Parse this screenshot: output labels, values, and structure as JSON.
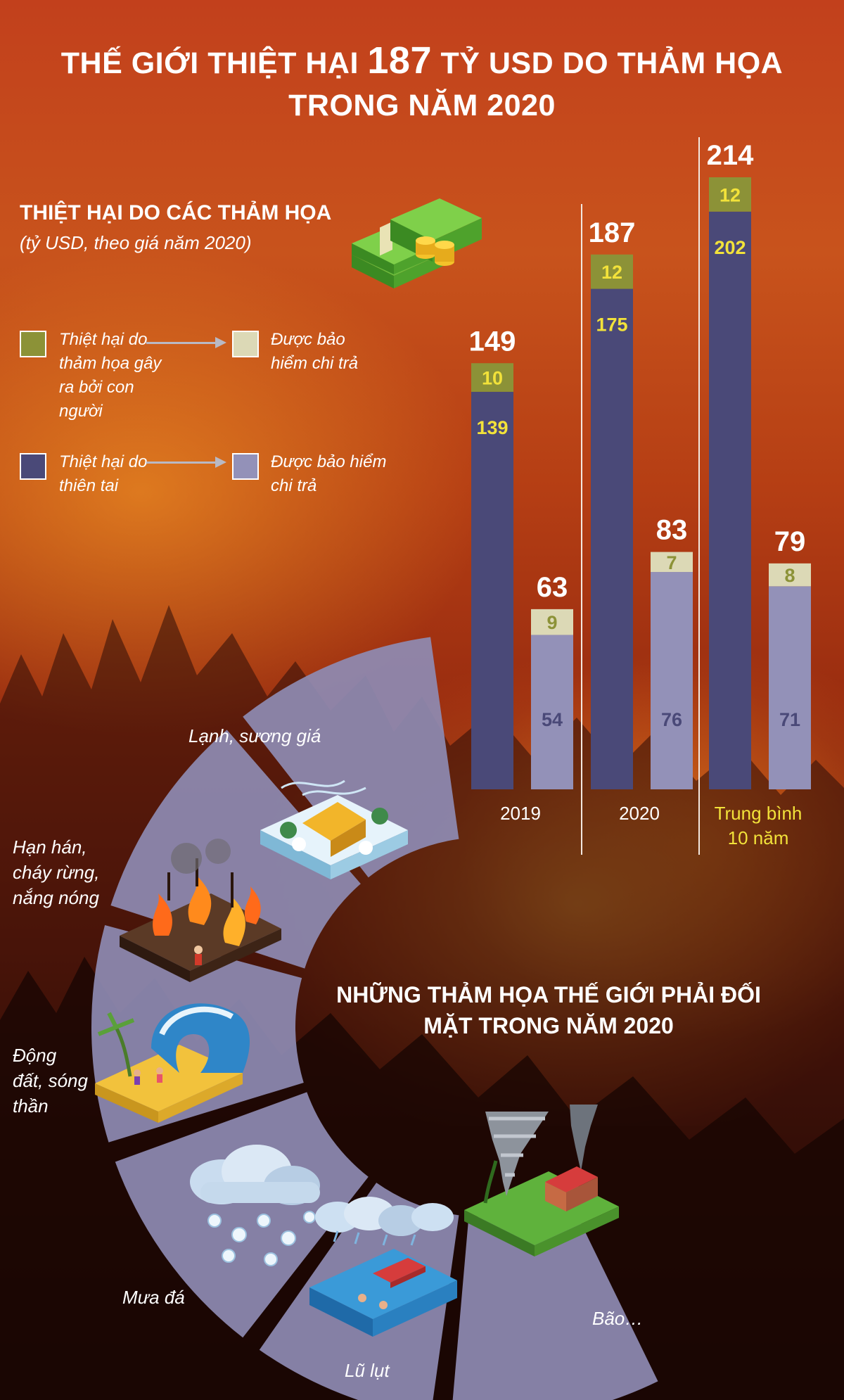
{
  "title": {
    "line1_pre": "THẾ GIỚI THIỆT HẠI",
    "line1_num": "187",
    "line1_post": "TỶ USD DO THẢM HỌA",
    "line2": "TRONG NĂM 2020"
  },
  "chart_data": {
    "type": "bar",
    "title": "THIỆT HẠI DO CÁC THẢM HỌA",
    "subtitle": "(tỷ USD, theo giá năm 2020)",
    "categories": [
      "2019",
      "2020",
      "Trung bình 10 năm"
    ],
    "series": [
      {
        "name": "Thiệt hại do thiên tai",
        "values": [
          139,
          175,
          202
        ]
      },
      {
        "name": "Thiệt hại do thảm họa gây ra bởi con người",
        "values": [
          10,
          12,
          12
        ]
      },
      {
        "name": "Được bảo hiểm chi trả (thiên tai)",
        "values": [
          54,
          76,
          71
        ]
      },
      {
        "name": "Được bảo hiểm chi trả (con người)",
        "values": [
          9,
          7,
          8
        ]
      }
    ],
    "totals_damage": [
      149,
      187,
      214
    ],
    "totals_insured": [
      63,
      83,
      79
    ],
    "groups": [
      {
        "label": "2019",
        "damage": {
          "total": 149,
          "natural": 139,
          "manmade": 10
        },
        "insured": {
          "total": 63,
          "natural": 54,
          "manmade": 9
        }
      },
      {
        "label": "2020",
        "damage": {
          "total": 187,
          "natural": 175,
          "manmade": 12
        },
        "insured": {
          "total": 83,
          "natural": 76,
          "manmade": 7
        }
      },
      {
        "label": "Trung bình 10 năm",
        "damage": {
          "total": 214,
          "natural": 202,
          "manmade": 12
        },
        "insured": {
          "total": 79,
          "natural": 71,
          "manmade": 8
        }
      }
    ],
    "ylim": [
      0,
      214
    ],
    "grid": false,
    "legend_position": "left",
    "colors": {
      "natural_damage": "#4a4978",
      "manmade_damage": "#8c9237",
      "natural_insured": "#9391b8",
      "manmade_insured": "#dcd9b6",
      "label_yellow": "#f2e23a",
      "label_insured_natural": "#4a4978",
      "label_insured_manmade": "#8c9237"
    }
  },
  "legend": {
    "manmade_damage": "Thiệt hại do thảm họa gây ra bởi con người",
    "manmade_insured": "Được bảo hiểm chi trả",
    "natural_damage": "Thiệt hại do thiên tai",
    "natural_insured": "Được bảo hiểm chi trả"
  },
  "disasters": {
    "title": "NHỮNG THẢM HỌA THẾ GIỚI PHẢI ĐỐI MẶT TRONG NĂM 2020",
    "items": [
      {
        "label": "Lạnh, sương giá",
        "icon": "snow-house-icon"
      },
      {
        "label": "Hạn hán, cháy rừng, nắng nóng",
        "icon": "wildfire-icon"
      },
      {
        "label": "Động đất, sóng thần",
        "icon": "tsunami-icon"
      },
      {
        "label": "Mưa đá",
        "icon": "hail-cloud-icon"
      },
      {
        "label": "Lũ lụt",
        "icon": "flood-icon"
      },
      {
        "label": "Bão…",
        "icon": "tornado-icon"
      }
    ]
  }
}
